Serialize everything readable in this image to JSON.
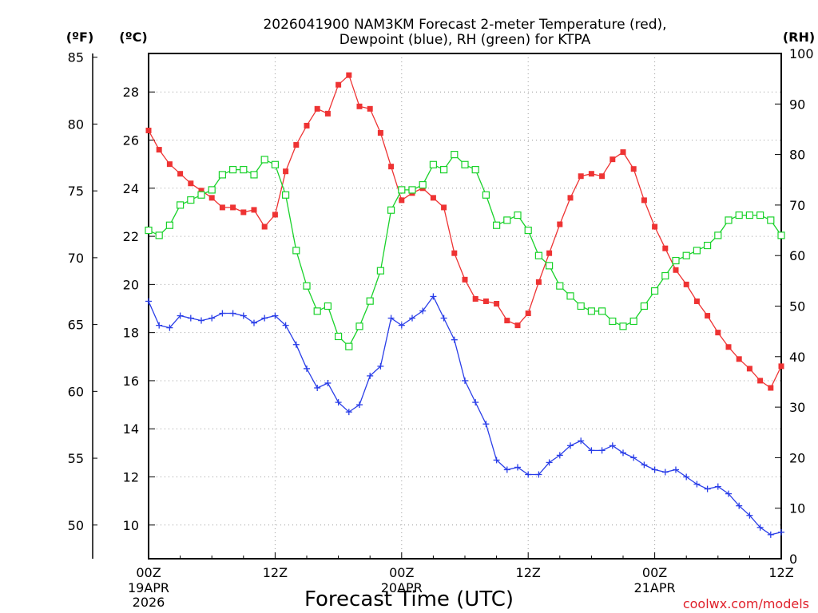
{
  "chart_data": {
    "type": "line",
    "title_line1": "2026041900 NAM3KM Forecast 2-meter Temperature (red),",
    "title_line2": "Dewpoint (blue), RH (green) for KTPA",
    "xlabel": "Forecast Time (UTC)",
    "credit": "coolwx.com/models",
    "units": {
      "f": "(ºF)",
      "c": "(ºC)",
      "rh": "(RH)"
    },
    "x_range_hours": [
      0,
      60
    ],
    "celsius_range": [
      8.6,
      29.6
    ],
    "rh_range": [
      0,
      100
    ],
    "x_ticks": [
      {
        "hour": 0,
        "label": "00Z",
        "date": "19APR",
        "year": "2026"
      },
      {
        "hour": 12,
        "label": "12Z",
        "date": "",
        "year": ""
      },
      {
        "hour": 24,
        "label": "00Z",
        "date": "20APR",
        "year": ""
      },
      {
        "hour": 36,
        "label": "12Z",
        "date": "",
        "year": ""
      },
      {
        "hour": 48,
        "label": "00Z",
        "date": "21APR",
        "year": ""
      },
      {
        "hour": 60,
        "label": "12Z",
        "date": "",
        "year": ""
      }
    ],
    "celsius_ticks": [
      10,
      12,
      14,
      16,
      18,
      20,
      22,
      24,
      26,
      28
    ],
    "fahrenheit_ticks": [
      50,
      55,
      60,
      65,
      70,
      75,
      80,
      85
    ],
    "rh_ticks": [
      0,
      10,
      20,
      30,
      40,
      50,
      60,
      70,
      80,
      90,
      100
    ],
    "hours": [
      0,
      1,
      2,
      3,
      4,
      5,
      6,
      7,
      8,
      9,
      10,
      11,
      12,
      13,
      14,
      15,
      16,
      17,
      18,
      19,
      20,
      21,
      22,
      23,
      24,
      25,
      26,
      27,
      28,
      29,
      30,
      31,
      32,
      33,
      34,
      35,
      36,
      37,
      38,
      39,
      40,
      41,
      42,
      43,
      44,
      45,
      46,
      47,
      48,
      49,
      50,
      51,
      52,
      53,
      54,
      55,
      56,
      57,
      58,
      59,
      60
    ],
    "series": [
      {
        "name": "Temperature (C)",
        "color": "#ee3333",
        "marker": "filled-square",
        "values": [
          26.4,
          25.6,
          25.0,
          24.6,
          24.2,
          23.9,
          23.6,
          23.2,
          23.2,
          23.0,
          23.1,
          22.4,
          22.9,
          24.7,
          25.8,
          26.6,
          27.3,
          27.1,
          28.3,
          28.7,
          27.4,
          27.3,
          26.3,
          24.9,
          23.5,
          23.8,
          24.0,
          23.6,
          23.2,
          21.3,
          20.2,
          19.4,
          19.3,
          19.2,
          18.5,
          18.3,
          18.8,
          20.1,
          21.3,
          22.5,
          23.6,
          24.5,
          24.6,
          24.5,
          25.2,
          25.5,
          24.8,
          23.5,
          22.4,
          21.5,
          20.6,
          20.0,
          19.3,
          18.7,
          18.0,
          17.4,
          16.9,
          16.5,
          16.0,
          15.7,
          16.6
        ]
      },
      {
        "name": "Dewpoint (C)",
        "color": "#2a3ee8",
        "marker": "plus",
        "values": [
          19.3,
          18.3,
          18.2,
          18.7,
          18.6,
          18.5,
          18.6,
          18.8,
          18.8,
          18.7,
          18.4,
          18.6,
          18.7,
          18.3,
          17.5,
          16.5,
          15.7,
          15.9,
          15.1,
          14.7,
          15.0,
          16.2,
          16.6,
          18.6,
          18.3,
          18.6,
          18.9,
          19.5,
          18.6,
          17.7,
          16.0,
          15.1,
          14.2,
          12.7,
          12.3,
          12.4,
          12.1,
          12.1,
          12.6,
          12.9,
          13.3,
          13.5,
          13.1,
          13.1,
          13.3,
          13.0,
          12.8,
          12.5,
          12.3,
          12.2,
          12.3,
          12.0,
          11.7,
          11.5,
          11.6,
          11.3,
          10.8,
          10.4,
          9.9,
          9.6,
          9.7
        ]
      },
      {
        "name": "RH (%)",
        "color": "#19d22a",
        "marker": "open-square",
        "values": [
          65,
          64,
          66,
          70,
          71,
          72,
          73,
          76,
          77,
          77,
          76,
          79,
          78,
          72,
          61,
          54,
          49,
          50,
          44,
          42,
          46,
          51,
          57,
          69,
          73,
          73,
          74,
          78,
          77,
          80,
          78,
          77,
          72,
          66,
          67,
          68,
          65,
          60,
          58,
          54,
          52,
          50,
          49,
          49,
          47,
          46,
          47,
          50,
          53,
          56,
          59,
          60,
          61,
          62,
          64,
          67,
          68,
          68,
          68,
          67,
          64
        ]
      }
    ]
  }
}
